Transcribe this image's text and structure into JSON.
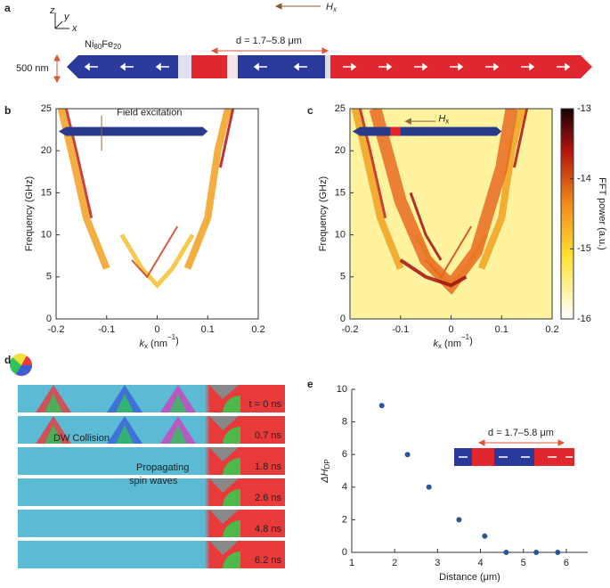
{
  "panel_a": {
    "label": "a",
    "axis_z": "z",
    "axis_y": "y",
    "axis_x": "x",
    "field": [
      "H",
      "x"
    ],
    "material": [
      "Ni",
      "80",
      "Fe",
      "20"
    ],
    "distance": "d = 1.7–5.8 μm",
    "width": "500 nm"
  },
  "chart_data": [
    {
      "type": "heatmap",
      "label": "b",
      "xlabel": [
        "k",
        "x",
        " (nm",
        "−1",
        ")"
      ],
      "ylabel": "Frequency (GHz)",
      "xlim": [
        -0.2,
        0.2
      ],
      "xticks": [
        -0.2,
        -0.1,
        0,
        0.1,
        0.2
      ],
      "ylim": [
        0,
        25
      ],
      "yticks": [
        0,
        5,
        10,
        15,
        20,
        25
      ],
      "annotation": "Field excitation"
    },
    {
      "type": "heatmap",
      "label": "c",
      "xlabel": [
        "k",
        "x",
        " (nm",
        "−1",
        ")"
      ],
      "ylabel": "Frequency (GHz)",
      "xlim": [
        -0.2,
        0.2
      ],
      "xticks": [
        -0.2,
        -0.1,
        0,
        0.1,
        0.2
      ],
      "ylim": [
        0,
        25
      ],
      "yticks": [
        0,
        5,
        10,
        15,
        20,
        25
      ],
      "annotation": [
        "H",
        "x"
      ],
      "colorbar": {
        "label": "FFT power (a.u.)",
        "clim": [
          -16,
          -13
        ],
        "ticks": [
          -13,
          -14,
          -15,
          -16
        ]
      }
    },
    {
      "type": "scatter",
      "label": "e",
      "xlabel": "Distance (μm)",
      "ylabel": [
        "ΔH",
        "DP"
      ],
      "x": [
        1.7,
        2.3,
        2.8,
        3.5,
        4.1,
        4.6,
        5.3,
        5.8
      ],
      "values": [
        9,
        6,
        4,
        2,
        1,
        0,
        0,
        0
      ],
      "color": "#2d5596",
      "xlim": [
        1,
        6.5
      ],
      "xticks": [
        1,
        2,
        3,
        4,
        5,
        6
      ],
      "ylim": [
        0,
        10
      ],
      "yticks": [
        0,
        2,
        4,
        6,
        8,
        10
      ],
      "inset": "d = 1.7–5.8 μm"
    }
  ],
  "panel_d": {
    "label": "d",
    "times": [
      "t = 0 ns",
      "0.7 ns",
      "1.8 ns",
      "2.6 ns",
      "4.8 ns",
      "6.2 ns"
    ],
    "collision": "DW Collision",
    "propagating": [
      "Propagating",
      "spin waves"
    ]
  }
}
